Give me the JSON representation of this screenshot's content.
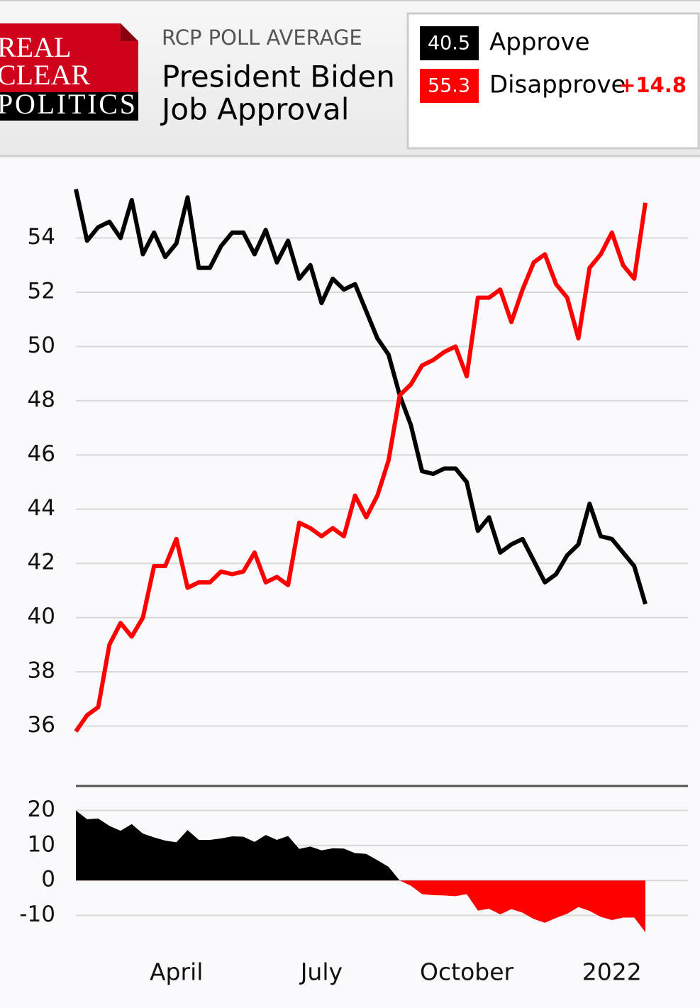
{
  "header": {
    "logo": [
      "REAL",
      "CLEAR",
      "POLITICS"
    ],
    "kicker": "RCP POLL AVERAGE",
    "title": [
      "President Biden",
      "Job Approval"
    ],
    "spread_label": "+14.8"
  },
  "chart_data": [
    {
      "type": "line",
      "series": [
        {
          "name": "Approve",
          "color": "#000000",
          "values": [
            55.8,
            53.9,
            54.4,
            54.6,
            54.0,
            55.4,
            53.4,
            54.2,
            53.3,
            53.8,
            55.5,
            52.9,
            52.9,
            53.7,
            54.2,
            54.2,
            53.4,
            54.3,
            53.1,
            53.9,
            52.5,
            53.0,
            51.6,
            52.5,
            52.1,
            52.3,
            51.3,
            50.3,
            49.7,
            48.2,
            47.1,
            45.4,
            45.3,
            45.5,
            45.5,
            45.0,
            43.2,
            43.7,
            42.4,
            42.7,
            42.9,
            42.1,
            41.3,
            41.6,
            42.3,
            42.7,
            44.2,
            43.0,
            42.9,
            42.4,
            41.9,
            40.5
          ]
        },
        {
          "name": "Disapprove",
          "color": "#ff0000",
          "values": [
            35.8,
            36.4,
            36.7,
            39.0,
            39.8,
            39.3,
            40.0,
            41.9,
            41.9,
            42.9,
            41.1,
            41.3,
            41.3,
            41.7,
            41.6,
            41.7,
            42.4,
            41.3,
            41.5,
            41.2,
            43.5,
            43.3,
            43.0,
            43.3,
            43.0,
            44.5,
            43.7,
            44.5,
            45.8,
            48.2,
            48.6,
            49.3,
            49.5,
            49.8,
            50.0,
            48.9,
            51.8,
            51.8,
            52.1,
            50.9,
            52.1,
            53.1,
            53.4,
            52.3,
            51.8,
            50.3,
            52.9,
            53.4,
            54.2,
            53.0,
            52.5,
            55.3
          ]
        }
      ],
      "ylim": [
        34,
        56.5
      ],
      "yticks": [
        36,
        38,
        40,
        42,
        44,
        46,
        48,
        50,
        52,
        54
      ],
      "grid": true
    },
    {
      "type": "area",
      "categories": [
        null,
        null,
        null,
        null,
        null,
        null,
        null,
        null,
        null,
        "April",
        null,
        null,
        null,
        null,
        null,
        null,
        null,
        null,
        null,
        null,
        null,
        null,
        "July",
        null,
        null,
        null,
        null,
        null,
        null,
        null,
        null,
        null,
        null,
        null,
        null,
        "October",
        null,
        null,
        null,
        null,
        null,
        null,
        null,
        null,
        null,
        null,
        null,
        null,
        "2022",
        null,
        null,
        null
      ],
      "values": [
        20.0,
        17.5,
        17.7,
        15.6,
        14.2,
        16.1,
        13.4,
        12.3,
        11.4,
        10.9,
        14.4,
        11.6,
        11.6,
        12.0,
        12.6,
        12.5,
        11.0,
        13.0,
        11.6,
        12.7,
        9.0,
        9.7,
        8.6,
        9.2,
        9.1,
        7.8,
        7.6,
        5.8,
        3.9,
        0.0,
        -1.5,
        -3.9,
        -4.2,
        -4.3,
        -4.5,
        -3.9,
        -8.6,
        -8.1,
        -9.7,
        -8.2,
        -9.2,
        -11.0,
        -12.1,
        -10.7,
        -9.5,
        -7.6,
        -8.7,
        -10.4,
        -11.3,
        -10.6,
        -10.6,
        -14.8
      ],
      "positive_color": "#000000",
      "negative_color": "#ff0000",
      "ylim": [
        -18,
        27
      ],
      "yticks": [
        -10,
        0,
        10,
        20
      ],
      "grid": true
    }
  ]
}
